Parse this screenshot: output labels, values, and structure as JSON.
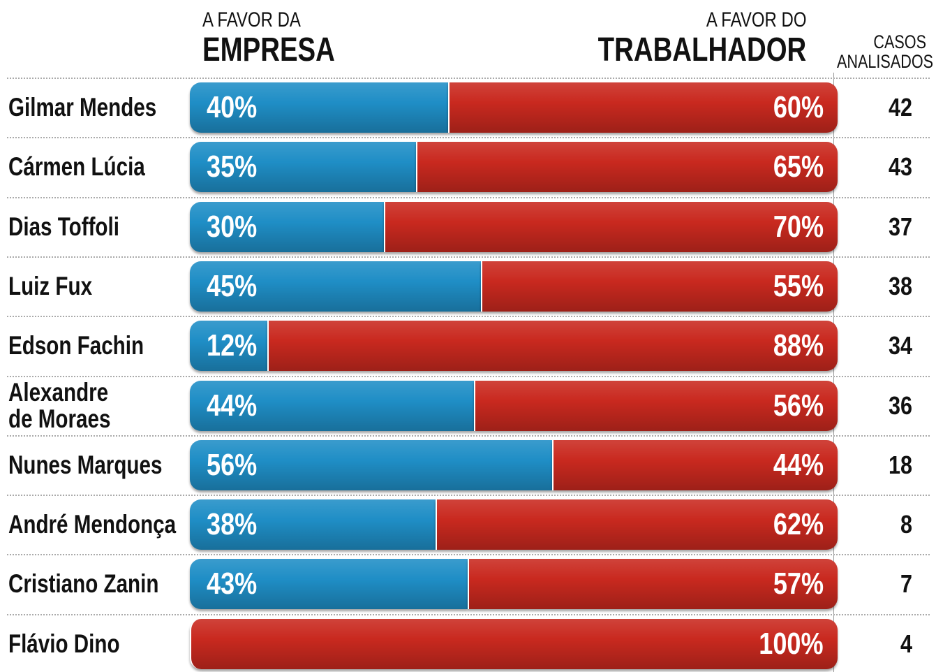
{
  "chart_data": {
    "type": "stacked_bar_100",
    "orientation": "horizontal",
    "categories": [
      "Gilmar Mendes",
      "Cármen Lúcia",
      "Dias Toffoli",
      "Luiz Fux",
      "Edson Fachin",
      "Alexandre\nde Moraes",
      "Nunes Marques",
      "André Mendonça",
      "Cristiano Zanin",
      "Flávio Dino"
    ],
    "xlim": [
      0,
      100
    ],
    "series": [
      {
        "name": "EMPRESA",
        "label_prefix": "A FAVOR DA",
        "color": "#1f8ec6",
        "values": [
          40,
          35,
          30,
          45,
          12,
          44,
          56,
          38,
          43,
          0
        ],
        "value_labels": [
          "40%",
          "35%",
          "30%",
          "45%",
          "12%",
          "44%",
          "56%",
          "38%",
          "43%",
          "0%"
        ]
      },
      {
        "name": "TRABALHADOR",
        "label_prefix": "A FAVOR DO",
        "color": "#c9291f",
        "values": [
          60,
          65,
          70,
          55,
          88,
          56,
          44,
          62,
          57,
          100
        ],
        "value_labels": [
          "60%",
          "65%",
          "70%",
          "55%",
          "88%",
          "56%",
          "44%",
          "62%",
          "57%",
          "100%"
        ]
      }
    ],
    "cases": {
      "title": "CASOS ANALISADOS",
      "values": [
        42,
        43,
        37,
        38,
        34,
        36,
        18,
        8,
        7,
        4
      ]
    }
  }
}
